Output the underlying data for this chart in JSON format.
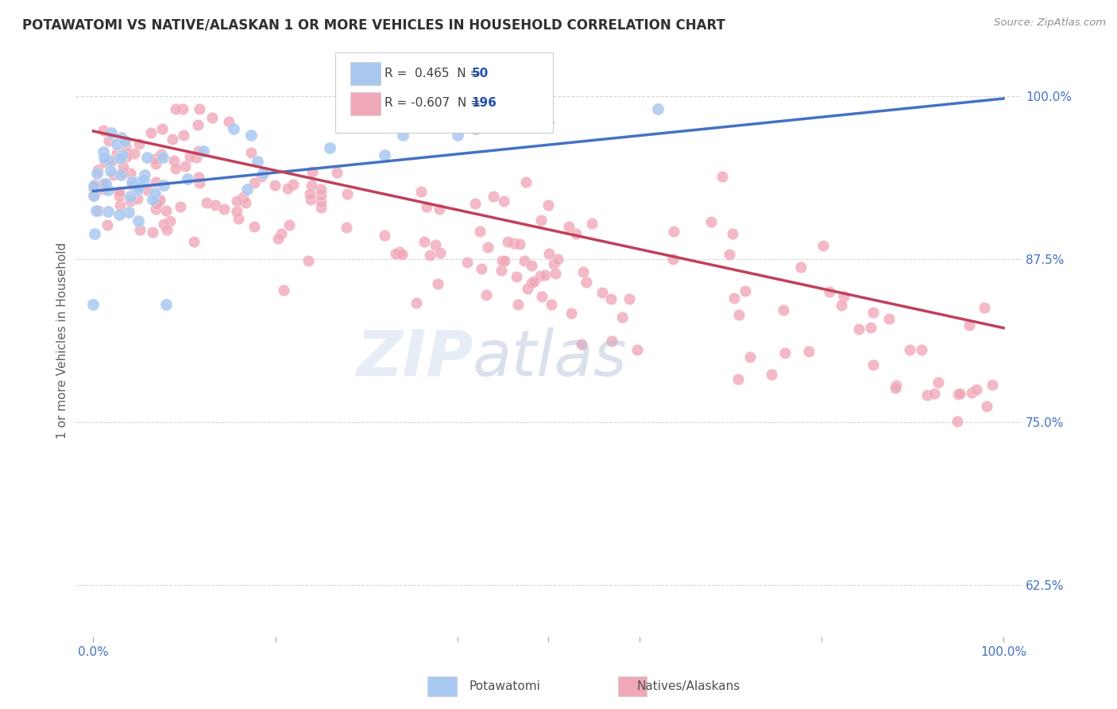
{
  "title": "POTAWATOMI VS NATIVE/ALASKAN 1 OR MORE VEHICLES IN HOUSEHOLD CORRELATION CHART",
  "source": "Source: ZipAtlas.com",
  "ylabel": "1 or more Vehicles in Household",
  "legend_label1": "Potawatomi",
  "legend_label2": "Natives/Alaskans",
  "R1": 0.465,
  "N1": 50,
  "R2": -0.607,
  "N2": 196,
  "xlim": [
    -0.02,
    1.02
  ],
  "ylim": [
    0.585,
    1.04
  ],
  "yticks": [
    0.625,
    0.75,
    0.875,
    1.0
  ],
  "ytick_labels": [
    "62.5%",
    "75.0%",
    "87.5%",
    "100.0%"
  ],
  "color_blue": "#a8c8f0",
  "color_pink": "#f0a8b8",
  "line_blue": "#4472c4",
  "line_pink": "#c0405a",
  "legend_R_color": "#2050b0",
  "tick_label_color": "#4472c4",
  "title_color": "#303030",
  "background_color": "#ffffff",
  "blue_line_start_y": 0.927,
  "blue_line_end_y": 0.998,
  "pink_line_start_y": 0.973,
  "pink_line_end_y": 0.822
}
